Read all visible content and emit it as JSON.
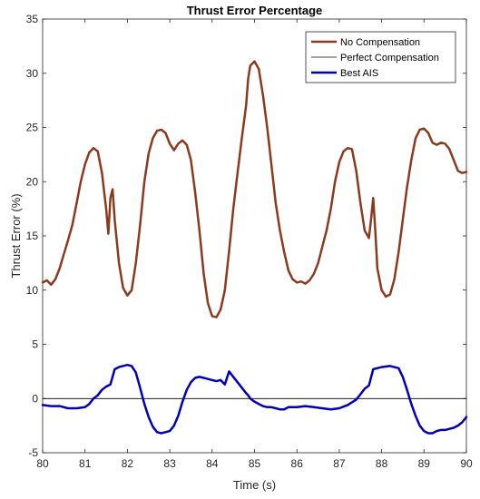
{
  "chart_data": {
    "type": "line",
    "title": "Thrust Error Percentage",
    "xlabel": "Time (s)",
    "ylabel": "Thrust Error (%)",
    "xlim": [
      80,
      90
    ],
    "ylim": [
      -5,
      35
    ],
    "xticks": [
      "80",
      "81",
      "82",
      "83",
      "84",
      "85",
      "86",
      "87",
      "88",
      "89",
      "90"
    ],
    "yticks": [
      "-5",
      "0",
      "5",
      "10",
      "15",
      "20",
      "25",
      "30",
      "35"
    ],
    "grid": false,
    "legend_position": "top-right",
    "series": [
      {
        "name": "No Compensation",
        "color": "#8b3a1e",
        "x": [
          80.0,
          80.1,
          80.2,
          80.3,
          80.4,
          80.5,
          80.6,
          80.7,
          80.8,
          80.9,
          81.0,
          81.1,
          81.2,
          81.3,
          81.4,
          81.5,
          81.55,
          81.6,
          81.65,
          81.7,
          81.8,
          81.9,
          82.0,
          82.1,
          82.2,
          82.3,
          82.4,
          82.5,
          82.6,
          82.7,
          82.8,
          82.9,
          83.0,
          83.1,
          83.2,
          83.3,
          83.4,
          83.5,
          83.6,
          83.7,
          83.8,
          83.9,
          84.0,
          84.1,
          84.2,
          84.3,
          84.4,
          84.5,
          84.6,
          84.7,
          84.8,
          84.85,
          84.9,
          85.0,
          85.1,
          85.2,
          85.3,
          85.4,
          85.5,
          85.6,
          85.7,
          85.8,
          85.9,
          86.0,
          86.1,
          86.2,
          86.3,
          86.4,
          86.5,
          86.6,
          86.7,
          86.8,
          86.9,
          87.0,
          87.1,
          87.2,
          87.3,
          87.4,
          87.5,
          87.6,
          87.7,
          87.75,
          87.8,
          87.85,
          87.9,
          88.0,
          88.1,
          88.2,
          88.3,
          88.4,
          88.5,
          88.6,
          88.7,
          88.8,
          88.9,
          89.0,
          89.1,
          89.2,
          89.3,
          89.4,
          89.5,
          89.6,
          89.7,
          89.8,
          89.9,
          90.0
        ],
        "y": [
          10.7,
          10.9,
          10.5,
          11.0,
          12.0,
          13.3,
          14.6,
          16.0,
          18.0,
          20.0,
          21.6,
          22.7,
          23.1,
          22.8,
          20.8,
          17.5,
          15.2,
          18.5,
          19.3,
          16.5,
          12.5,
          10.2,
          9.5,
          10.0,
          12.5,
          16.0,
          20.0,
          22.6,
          24.0,
          24.7,
          24.8,
          24.5,
          23.5,
          22.9,
          23.5,
          23.8,
          23.4,
          22.0,
          19.0,
          15.5,
          11.5,
          8.8,
          7.6,
          7.5,
          8.2,
          10.0,
          13.6,
          17.5,
          20.8,
          24.0,
          27.0,
          29.5,
          30.7,
          31.1,
          30.4,
          28.0,
          25.0,
          21.5,
          18.0,
          15.5,
          13.5,
          11.8,
          11.0,
          10.7,
          10.8,
          10.6,
          10.9,
          11.5,
          12.5,
          14.0,
          15.5,
          17.5,
          20.0,
          21.8,
          22.8,
          23.1,
          23.0,
          21.0,
          18.0,
          15.5,
          14.8,
          16.5,
          18.5,
          15.5,
          12.0,
          10.0,
          9.4,
          9.6,
          11.0,
          13.5,
          16.5,
          19.5,
          22.0,
          24.0,
          24.8,
          24.9,
          24.5,
          23.6,
          23.4,
          23.6,
          23.5,
          23.0,
          22.0,
          21.0,
          20.8,
          20.9
        ],
        "width": 2.5
      },
      {
        "name": "Perfect Compensation",
        "color": "#000000",
        "x": [
          80,
          90
        ],
        "y": [
          0,
          0
        ],
        "width": 0.8
      },
      {
        "name": "Best AIS",
        "color": "#0000b4",
        "x": [
          80.0,
          80.2,
          80.4,
          80.6,
          80.8,
          81.0,
          81.1,
          81.2,
          81.3,
          81.4,
          81.5,
          81.6,
          81.7,
          81.8,
          82.0,
          82.1,
          82.2,
          82.3,
          82.4,
          82.5,
          82.6,
          82.7,
          82.8,
          82.9,
          83.0,
          83.1,
          83.2,
          83.3,
          83.4,
          83.5,
          83.6,
          83.7,
          83.8,
          83.9,
          84.0,
          84.1,
          84.2,
          84.3,
          84.4,
          84.5,
          84.6,
          84.7,
          84.8,
          84.85,
          84.9,
          85.0,
          85.1,
          85.2,
          85.3,
          85.4,
          85.5,
          85.6,
          85.7,
          85.8,
          86.0,
          86.2,
          86.4,
          86.6,
          86.8,
          87.0,
          87.2,
          87.4,
          87.5,
          87.6,
          87.7,
          87.8,
          87.9,
          88.0,
          88.2,
          88.4,
          88.5,
          88.6,
          88.7,
          88.8,
          88.9,
          89.0,
          89.1,
          89.2,
          89.3,
          89.4,
          89.5,
          89.6,
          89.7,
          89.8,
          89.9,
          90.0
        ],
        "y": [
          -0.6,
          -0.7,
          -0.7,
          -0.9,
          -0.9,
          -0.8,
          -0.5,
          0.0,
          0.3,
          0.8,
          1.1,
          1.3,
          2.7,
          2.9,
          3.1,
          3.0,
          2.4,
          1.0,
          -0.5,
          -1.7,
          -2.6,
          -3.1,
          -3.2,
          -3.1,
          -3.0,
          -2.5,
          -1.6,
          -0.3,
          0.8,
          1.5,
          1.9,
          2.0,
          1.9,
          1.8,
          1.7,
          1.6,
          1.7,
          1.3,
          2.5,
          2.0,
          1.5,
          1.0,
          0.5,
          0.3,
          0.0,
          -0.3,
          -0.5,
          -0.7,
          -0.8,
          -0.8,
          -0.9,
          -1.0,
          -1.0,
          -0.8,
          -0.8,
          -0.7,
          -0.8,
          -0.9,
          -1.0,
          -0.9,
          -0.6,
          -0.1,
          0.4,
          0.9,
          1.2,
          2.7,
          2.8,
          2.9,
          3.0,
          2.8,
          2.0,
          0.8,
          -0.5,
          -1.6,
          -2.5,
          -3.0,
          -3.2,
          -3.2,
          -3.0,
          -2.9,
          -2.9,
          -2.8,
          -2.7,
          -2.5,
          -2.2,
          -1.7
        ]
      }
    ]
  }
}
